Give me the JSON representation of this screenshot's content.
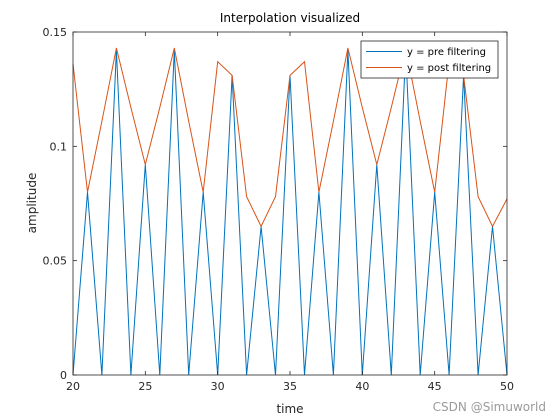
{
  "watermark": "CSDN @Simuworld",
  "chart_data": {
    "type": "line",
    "title": "Interpolation visualized",
    "xlabel": "time",
    "ylabel": "amplitude",
    "xlim": [
      20,
      50
    ],
    "ylim": [
      0,
      0.15
    ],
    "xticks": [
      20,
      25,
      30,
      35,
      40,
      45,
      50
    ],
    "xtick_labels": [
      "20",
      "25",
      "30",
      "35",
      "40",
      "45",
      "50"
    ],
    "yticks": [
      0,
      0.05,
      0.1,
      0.15
    ],
    "ytick_labels": [
      "0",
      "0.05",
      "0.1",
      "0.15"
    ],
    "grid": false,
    "legend_position": "top-right",
    "series": [
      {
        "name": "y = pre filtering",
        "color": "#0072BD",
        "x": [
          20,
          21,
          22,
          23,
          24,
          25,
          26,
          27,
          28,
          29,
          30,
          31,
          32,
          33,
          34,
          35,
          36,
          37,
          38,
          39,
          40,
          41,
          42,
          43,
          44,
          45,
          46,
          47,
          48,
          49,
          50
        ],
        "y": [
          0,
          0.08,
          0,
          0.142,
          0,
          0.092,
          0,
          0.142,
          0,
          0.08,
          0,
          0.131,
          0,
          0.065,
          0,
          0.131,
          0,
          0.08,
          0,
          0.142,
          0,
          0.092,
          0,
          0.142,
          0,
          0.08,
          0,
          0.131,
          0,
          0.065,
          0
        ]
      },
      {
        "name": "y = post filtering",
        "color": "#D95319",
        "x": [
          20,
          21,
          22,
          23,
          24,
          25,
          26,
          27,
          28,
          29,
          30,
          31,
          32,
          33,
          34,
          35,
          36,
          37,
          38,
          39,
          40,
          41,
          42,
          43,
          44,
          45,
          46,
          47,
          48,
          49,
          50
        ],
        "y": [
          0.136,
          0.08,
          0.111,
          0.143,
          0.117,
          0.092,
          0.117,
          0.143,
          0.111,
          0.08,
          0.137,
          0.131,
          0.078,
          0.065,
          0.078,
          0.131,
          0.137,
          0.08,
          0.111,
          0.143,
          0.117,
          0.092,
          0.117,
          0.143,
          0.111,
          0.08,
          0.137,
          0.131,
          0.078,
          0.065,
          0.077
        ]
      }
    ]
  }
}
